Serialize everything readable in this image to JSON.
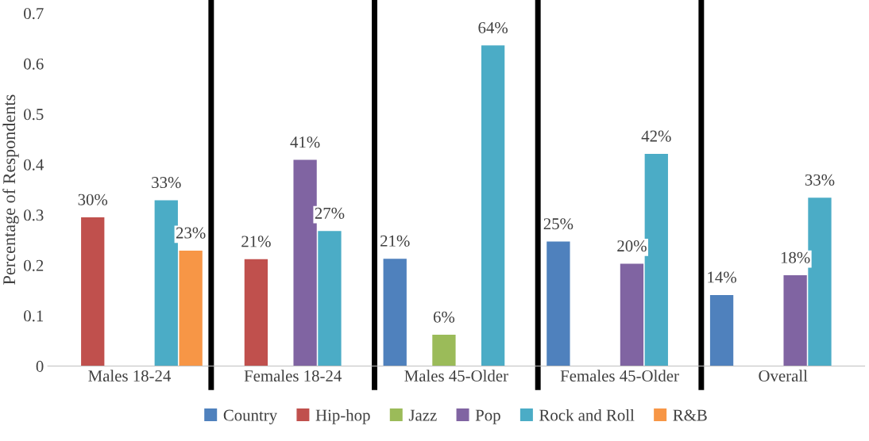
{
  "chart_data": {
    "type": "bar",
    "ylabel": "Percentage of Respondents",
    "categories": [
      "Males 18-24",
      "Females 18-24",
      "Males 45-Older",
      "Females 45-Older",
      "Overall"
    ],
    "series": [
      {
        "name": "Country",
        "color": "#4f81bd",
        "values": [
          null,
          null,
          0.213,
          0.247,
          0.141
        ],
        "value_labels": [
          null,
          null,
          "21%",
          "25%",
          "14%"
        ]
      },
      {
        "name": "Hip-hop",
        "color": "#c0504d",
        "values": [
          0.295,
          0.212,
          null,
          null,
          null
        ],
        "value_labels": [
          "30%",
          "21%",
          null,
          null,
          null
        ]
      },
      {
        "name": "Jazz",
        "color": "#9bbb59",
        "values": [
          null,
          null,
          0.062,
          null,
          null
        ],
        "value_labels": [
          null,
          null,
          "6%",
          null,
          null
        ]
      },
      {
        "name": "Pop",
        "color": "#8064a2",
        "values": [
          null,
          0.409,
          null,
          0.203,
          0.18
        ],
        "value_labels": [
          null,
          "41%",
          null,
          "20%",
          "18%"
        ]
      },
      {
        "name": "Rock and Roll",
        "color": "#4bacc6",
        "values": [
          0.329,
          0.268,
          0.636,
          0.421,
          0.334
        ],
        "value_labels": [
          "33%",
          "27%",
          "64%",
          "42%",
          "33%"
        ]
      },
      {
        "name": "R&B",
        "color": "#f79646",
        "values": [
          0.229,
          null,
          null,
          null,
          null
        ],
        "value_labels": [
          "23%",
          null,
          null,
          null,
          null
        ]
      }
    ],
    "ylim": [
      0,
      0.7
    ],
    "yticks": [
      0,
      0.1,
      0.2,
      0.3,
      0.4,
      0.5,
      0.6,
      0.7
    ],
    "grid": false,
    "legend": "bottom"
  }
}
